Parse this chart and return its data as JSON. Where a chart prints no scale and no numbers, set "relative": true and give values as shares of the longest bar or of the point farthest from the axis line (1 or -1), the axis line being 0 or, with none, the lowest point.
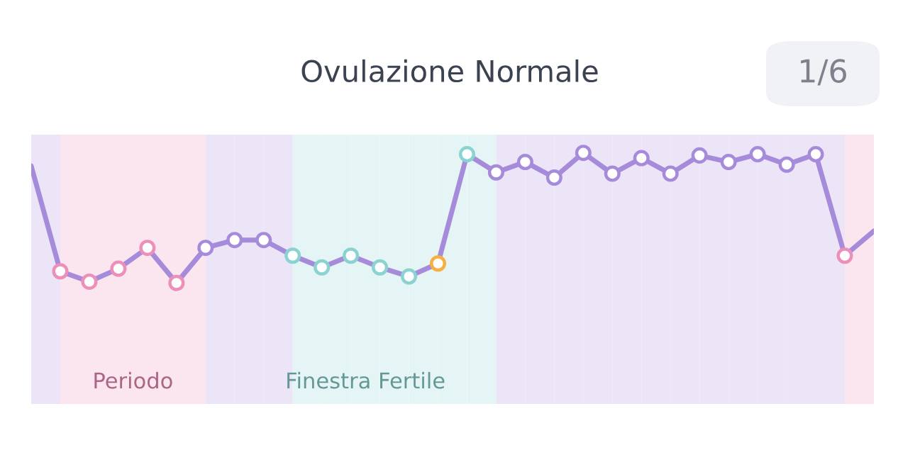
{
  "chart_data": {
    "type": "line",
    "title": "Ovulazione Normale",
    "relative": true,
    "legend": false,
    "marker": "circle",
    "line_style": "solid",
    "categories": [
      null,
      null,
      null,
      null,
      null,
      null,
      null,
      null,
      null,
      null,
      null,
      null,
      null,
      null,
      null,
      null,
      null,
      null,
      null,
      null,
      null,
      null,
      null,
      null,
      null,
      null,
      null,
      null,
      null,
      null
    ],
    "annotations": [
      "1/6",
      "Periodo",
      "Finestra Fertile"
    ],
    "series": [
      {
        "color": "#a78bdb",
        "values": [
          0.9,
          0.09,
          0.01,
          0.11,
          0.27,
          0,
          0.27,
          0.33,
          0.33,
          0.21,
          0.12,
          0.21,
          0.12,
          0.05,
          0.15,
          0.99,
          0.85,
          0.93,
          0.81,
          1,
          0.84,
          0.96,
          0.84,
          0.98,
          0.93,
          0.99,
          0.91,
          0.99,
          0.21,
          0.4
        ],
        "colors": [
          null,
          "#ec8fb9",
          "#ec8fb9",
          "#ec8fb9",
          "#ec8fb9",
          "#ec8fb9",
          "#a78bdb",
          "#a78bdb",
          "#a78bdb",
          "#8bd3d1",
          "#8bd3d1",
          "#8bd3d1",
          "#8bd3d1",
          "#8bd3d1",
          "#f5b041",
          "#8bd3d1",
          "#a78bdb",
          "#a78bdb",
          "#a78bdb",
          "#a78bdb",
          "#a78bdb",
          "#a78bdb",
          "#a78bdb",
          "#a78bdb",
          "#a78bdb",
          "#a78bdb",
          "#a78bdb",
          "#a78bdb",
          "#ec8fb9",
          null
        ]
      }
    ]
  }
}
